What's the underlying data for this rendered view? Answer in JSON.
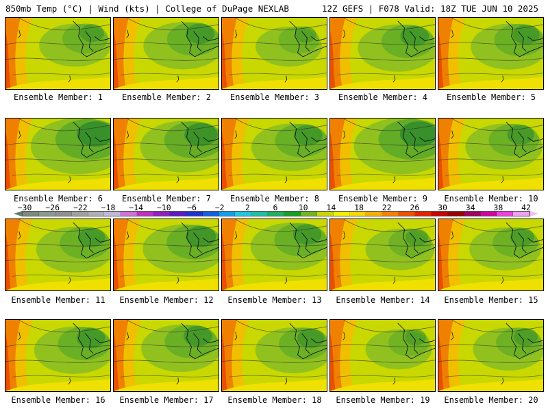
{
  "header": {
    "left": "850mb Temp (°C) | Wind (kts) | College of DuPage NEXLAB",
    "right": "12Z GEFS | F078 Valid: 18Z TUE JUN 10 2025"
  },
  "members": [
    {
      "label": "Ensemble Member: 1",
      "green": 0.45
    },
    {
      "label": "Ensemble Member: 2",
      "green": 0.6
    },
    {
      "label": "Ensemble Member: 3",
      "green": 0.35
    },
    {
      "label": "Ensemble Member: 4",
      "green": 0.6
    },
    {
      "label": "Ensemble Member: 5",
      "green": 0.55
    },
    {
      "label": "Ensemble Member: 6",
      "green": 0.9
    },
    {
      "label": "Ensemble Member: 7",
      "green": 0.75
    },
    {
      "label": "Ensemble Member: 8",
      "green": 0.6
    },
    {
      "label": "Ensemble Member: 9",
      "green": 0.9
    },
    {
      "label": "Ensemble Member: 10",
      "green": 0.55
    },
    {
      "label": "Ensemble Member: 11",
      "green": 0.55
    },
    {
      "label": "Ensemble Member: 12",
      "green": 0.65
    },
    {
      "label": "Ensemble Member: 13",
      "green": 0.6
    },
    {
      "label": "Ensemble Member: 14",
      "green": 0.4
    },
    {
      "label": "Ensemble Member: 15",
      "green": 0.45
    },
    {
      "label": "Ensemble Member: 16",
      "green": 0.6
    },
    {
      "label": "Ensemble Member: 17",
      "green": 0.6
    },
    {
      "label": "Ensemble Member: 18",
      "green": 0.55
    },
    {
      "label": "Ensemble Member: 19",
      "green": 0.35
    },
    {
      "label": "Ensemble Member: 20",
      "green": 0.45
    }
  ],
  "colorbar": {
    "labels": [
      "-30",
      "-26",
      "-22",
      "-18",
      "-14",
      "-10",
      "-6",
      "-2",
      "2",
      "6",
      "10",
      "14",
      "18",
      "22",
      "26",
      "30",
      "34",
      "38",
      "42"
    ],
    "colors": [
      "#7a8a80",
      "#8a9a90",
      "#909090",
      "#a0a0a0",
      "#b0b0b8",
      "#c0b8d8",
      "#d070d8",
      "#c030c0",
      "#9020c0",
      "#5a18c8",
      "#2030d0",
      "#1060e0",
      "#10a0e8",
      "#20c8e0",
      "#20c0a0",
      "#20b060",
      "#18a020",
      "#70b820",
      "#c8d800",
      "#f0f000",
      "#f8d800",
      "#f8b000",
      "#f88000",
      "#f05000",
      "#e82000",
      "#c80000",
      "#980000",
      "#a00060",
      "#d000a0",
      "#f040e0",
      "#f0a0f0"
    ],
    "left_arrow_color": "#6a7a70",
    "right_arrow_color": "#f0c0f0"
  }
}
